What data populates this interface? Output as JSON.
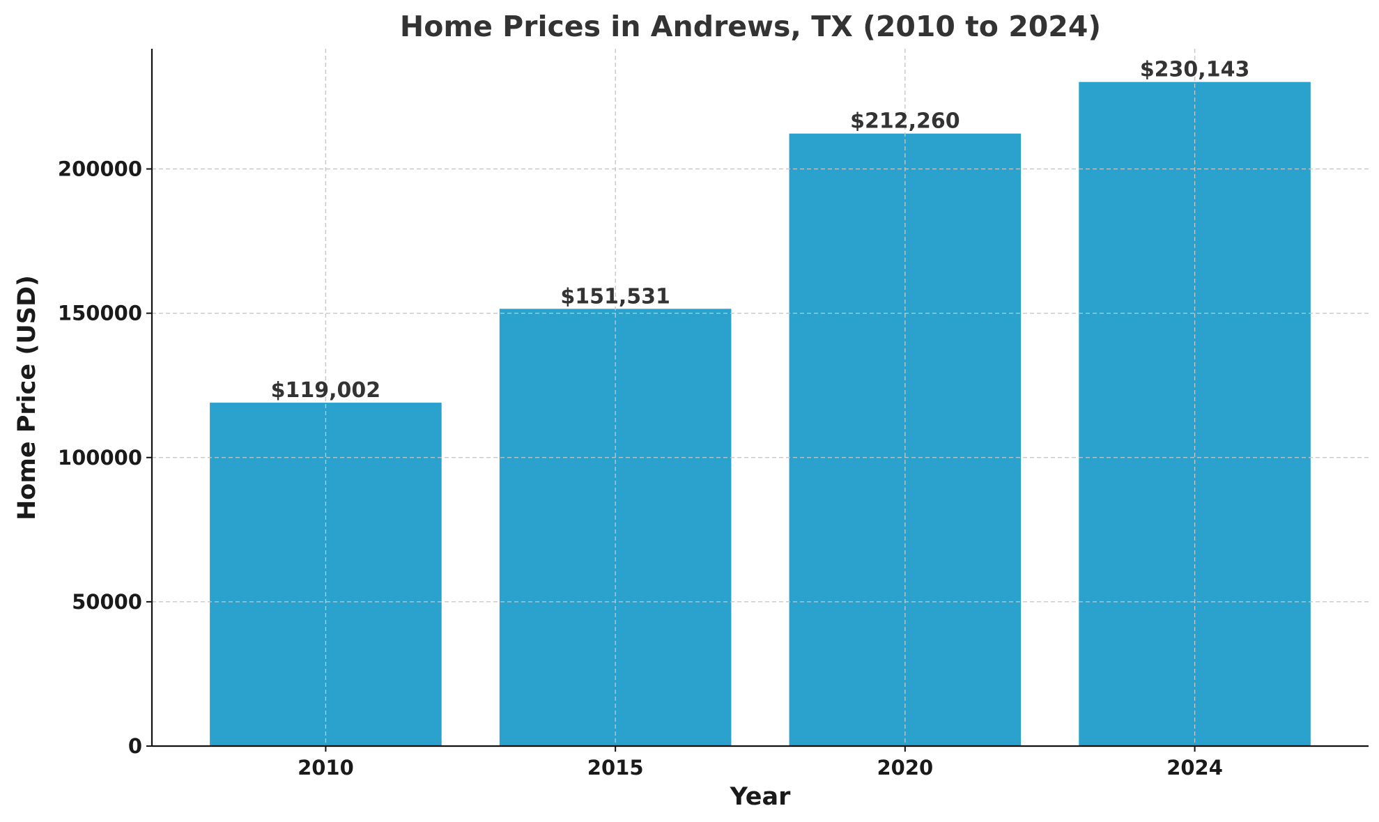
{
  "chart_data": {
    "type": "bar",
    "title": "Home Prices in Andrews, TX (2010 to 2024)",
    "xlabel": "Year",
    "ylabel": "Home Price (USD)",
    "categories": [
      "2010",
      "2015",
      "2020",
      "2024"
    ],
    "values": [
      119002,
      151531,
      212260,
      230143
    ],
    "value_labels": [
      "$119,002",
      "$151,531",
      "$212,260",
      "$230,143"
    ],
    "ylim": [
      0,
      241650
    ],
    "yticks": [
      0,
      50000,
      100000,
      150000,
      200000
    ],
    "ytick_labels": [
      "0",
      "50000",
      "100000",
      "150000",
      "200000"
    ],
    "grid": true,
    "legend": "none",
    "colors": {
      "bar": "#2ba1ce"
    }
  }
}
